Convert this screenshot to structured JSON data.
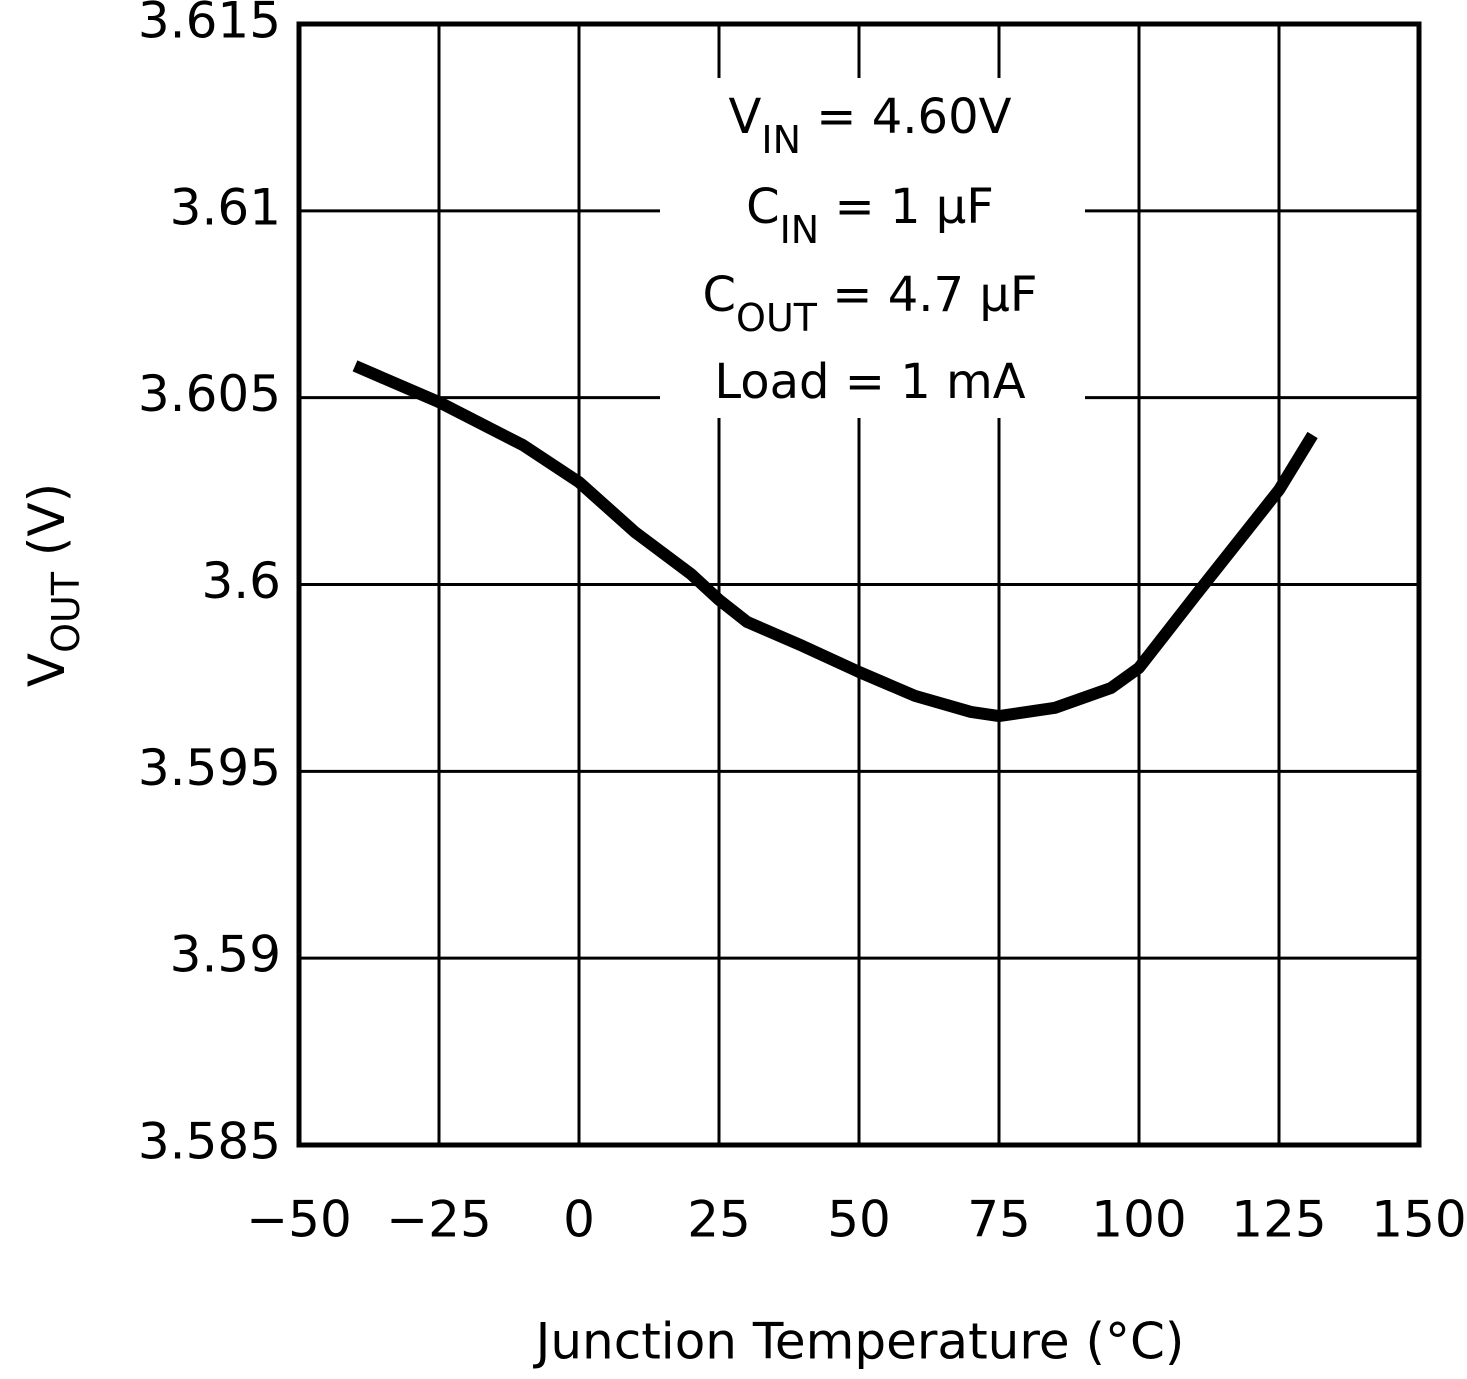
{
  "chart_data": {
    "type": "line",
    "xlabel": "Junction Temperature (°C)",
    "ylabel": {
      "main": "V",
      "sub": "OUT",
      "rest": "  (V)"
    },
    "annotations": [
      {
        "main": "V",
        "sub": "IN",
        "rest": " = 4.60V"
      },
      {
        "main": "C",
        "sub": "IN",
        "rest": " = 1 μF"
      },
      {
        "main": "C",
        "sub": "OUT",
        "rest": " = 4.7 μF"
      },
      {
        "main": "Load = 1 mA"
      }
    ],
    "x": [
      -40,
      -25,
      -10,
      0,
      10,
      20,
      25,
      30,
      40,
      50,
      60,
      70,
      75,
      85,
      95,
      100,
      110,
      125,
      131
    ],
    "series": [
      {
        "color": "#000000",
        "values": [
          3.60585,
          3.60488,
          3.60373,
          3.60274,
          3.6014,
          3.60028,
          3.59959,
          3.599,
          3.59835,
          3.59766,
          3.59702,
          3.59659,
          3.59648,
          3.5967,
          3.59723,
          3.59777,
          3.59969,
          3.60253,
          3.604
        ]
      }
    ],
    "xlim": [
      -50,
      150
    ],
    "xticks": [
      {
        "value": -50,
        "label": "−50"
      },
      {
        "value": -25,
        "label": "−25"
      },
      0,
      25,
      50,
      75,
      100,
      125,
      150
    ],
    "ylim": [
      3.585,
      3.615
    ],
    "yticks": [
      3.585,
      3.59,
      3.595,
      3.6,
      3.605,
      3.61,
      3.615
    ],
    "grid": true
  }
}
